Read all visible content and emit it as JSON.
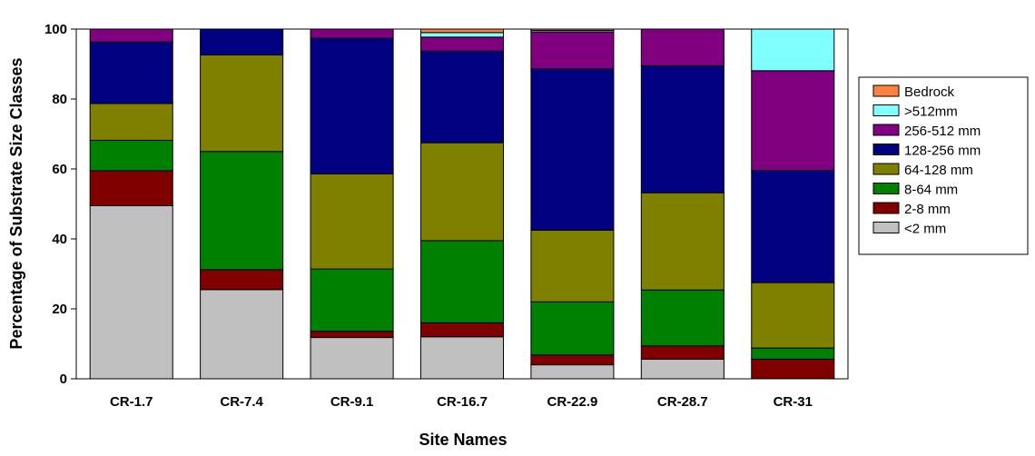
{
  "chart_data": {
    "type": "bar",
    "stacked": true,
    "title": "",
    "xlabel": "Site Names",
    "ylabel": "Percentage of Substrate Size Classes",
    "ylim": [
      0,
      100
    ],
    "yticks": [
      "0",
      "20",
      "40",
      "60",
      "80",
      "100"
    ],
    "categories": [
      "CR-1.7",
      "CR-7.4",
      "CR-9.1",
      "CR-16.7",
      "CR-22.9",
      "CR-28.7",
      "CR-31"
    ],
    "legend_position": "right",
    "series": [
      {
        "name": "<2 mm",
        "color": "#c0c0c0",
        "values": [
          49.5,
          25.5,
          11.8,
          12.0,
          4.0,
          5.6,
          0.0
        ]
      },
      {
        "name": "2-8 mm",
        "color": "#800000",
        "values": [
          10.0,
          5.7,
          1.8,
          4.0,
          2.8,
          3.8,
          5.6
        ]
      },
      {
        "name": "8-64 mm",
        "color": "#008000",
        "values": [
          8.7,
          33.8,
          17.8,
          23.5,
          15.2,
          16.0,
          3.2
        ]
      },
      {
        "name": "64-128 mm",
        "color": "#808000",
        "values": [
          10.5,
          27.6,
          27.2,
          28.0,
          20.5,
          27.8,
          18.7
        ]
      },
      {
        "name": "128-256 mm",
        "color": "#000080",
        "values": [
          17.6,
          7.4,
          38.8,
          26.2,
          46.1,
          36.3,
          32.1
        ]
      },
      {
        "name": "256-512 mm",
        "color": "#800080",
        "values": [
          3.7,
          0.0,
          2.6,
          4.0,
          10.6,
          10.5,
          28.5
        ]
      },
      {
        "name": ">512mm",
        "color": "#80ffff",
        "values": [
          0.0,
          0.0,
          0.0,
          1.3,
          0.4,
          0.0,
          11.9
        ]
      },
      {
        "name": "Bedrock",
        "color": "#ff8040",
        "values": [
          0.0,
          0.0,
          0.0,
          1.0,
          0.4,
          0.0,
          0.0
        ]
      }
    ]
  }
}
